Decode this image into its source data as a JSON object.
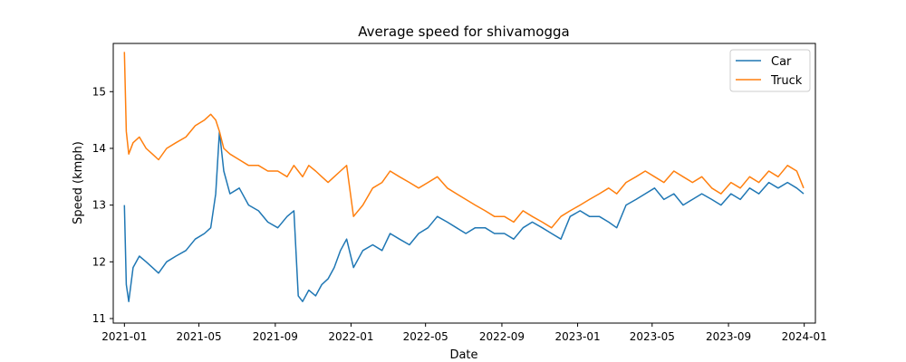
{
  "chart_data": {
    "type": "line",
    "title": "Average speed for shivamogga",
    "xlabel": "Date",
    "ylabel": "Speed (kmph)",
    "xlim": [
      "2020-12-14",
      "2024-01-19"
    ],
    "ylim": [
      10.92,
      15.85
    ],
    "x_ticks": [
      "2021-01",
      "2021-05",
      "2021-09",
      "2022-01",
      "2022-05",
      "2022-09",
      "2023-01",
      "2023-05",
      "2023-09",
      "2024-01"
    ],
    "y_ticks": [
      11,
      12,
      13,
      14,
      15
    ],
    "legend_position": "top-right",
    "grid": false,
    "series": [
      {
        "name": "Car",
        "color": "#1f77b4",
        "x": [
          "2021-01-01",
          "2021-01-04",
          "2021-01-08",
          "2021-01-15",
          "2021-01-25",
          "2021-02-05",
          "2021-02-15",
          "2021-02-25",
          "2021-03-10",
          "2021-03-25",
          "2021-04-10",
          "2021-04-25",
          "2021-05-10",
          "2021-05-20",
          "2021-05-28",
          "2021-06-03",
          "2021-06-10",
          "2021-06-20",
          "2021-07-05",
          "2021-07-20",
          "2021-08-05",
          "2021-08-20",
          "2021-09-05",
          "2021-09-20",
          "2021-10-01",
          "2021-10-08",
          "2021-10-15",
          "2021-10-25",
          "2021-11-05",
          "2021-11-15",
          "2021-11-25",
          "2021-12-05",
          "2021-12-15",
          "2021-12-25",
          "2022-01-05",
          "2022-01-20",
          "2022-02-05",
          "2022-02-20",
          "2022-03-05",
          "2022-03-20",
          "2022-04-05",
          "2022-04-20",
          "2022-05-05",
          "2022-05-20",
          "2022-06-05",
          "2022-06-20",
          "2022-07-05",
          "2022-07-20",
          "2022-08-05",
          "2022-08-20",
          "2022-09-05",
          "2022-09-20",
          "2022-10-05",
          "2022-10-20",
          "2022-11-05",
          "2022-11-20",
          "2022-12-05",
          "2022-12-20",
          "2023-01-05",
          "2023-01-20",
          "2023-02-05",
          "2023-02-20",
          "2023-03-05",
          "2023-03-20",
          "2023-04-05",
          "2023-04-20",
          "2023-05-05",
          "2023-05-20",
          "2023-06-05",
          "2023-06-20",
          "2023-07-05",
          "2023-07-20",
          "2023-08-05",
          "2023-08-20",
          "2023-09-05",
          "2023-09-20",
          "2023-10-05",
          "2023-10-20",
          "2023-11-05",
          "2023-11-20",
          "2023-12-05",
          "2023-12-20",
          "2023-12-31"
        ],
        "y": [
          13.0,
          11.6,
          11.3,
          11.9,
          12.1,
          12.0,
          11.9,
          11.8,
          12.0,
          12.1,
          12.2,
          12.4,
          12.5,
          12.6,
          13.2,
          14.3,
          13.6,
          13.2,
          13.3,
          13.0,
          12.9,
          12.7,
          12.6,
          12.8,
          12.9,
          11.4,
          11.3,
          11.5,
          11.4,
          11.6,
          11.7,
          11.9,
          12.2,
          12.4,
          11.9,
          12.2,
          12.3,
          12.2,
          12.5,
          12.4,
          12.3,
          12.5,
          12.6,
          12.8,
          12.7,
          12.6,
          12.5,
          12.6,
          12.6,
          12.5,
          12.5,
          12.4,
          12.6,
          12.7,
          12.6,
          12.5,
          12.4,
          12.8,
          12.9,
          12.8,
          12.8,
          12.7,
          12.6,
          13.0,
          13.1,
          13.2,
          13.3,
          13.1,
          13.2,
          13.0,
          13.1,
          13.2,
          13.1,
          13.0,
          13.2,
          13.1,
          13.3,
          13.2,
          13.4,
          13.3,
          13.4,
          13.3,
          13.2
        ]
      },
      {
        "name": "Truck",
        "color": "#ff7f0e",
        "x": [
          "2021-01-01",
          "2021-01-04",
          "2021-01-08",
          "2021-01-15",
          "2021-01-25",
          "2021-02-05",
          "2021-02-15",
          "2021-02-25",
          "2021-03-10",
          "2021-03-25",
          "2021-04-10",
          "2021-04-25",
          "2021-05-10",
          "2021-05-20",
          "2021-05-28",
          "2021-06-03",
          "2021-06-10",
          "2021-06-20",
          "2021-07-05",
          "2021-07-20",
          "2021-08-05",
          "2021-08-20",
          "2021-09-05",
          "2021-09-20",
          "2021-10-01",
          "2021-10-08",
          "2021-10-15",
          "2021-10-25",
          "2021-11-05",
          "2021-11-15",
          "2021-11-25",
          "2021-12-05",
          "2021-12-15",
          "2021-12-25",
          "2022-01-05",
          "2022-01-20",
          "2022-02-05",
          "2022-02-20",
          "2022-03-05",
          "2022-03-20",
          "2022-04-05",
          "2022-04-20",
          "2022-05-05",
          "2022-05-20",
          "2022-06-05",
          "2022-06-20",
          "2022-07-05",
          "2022-07-20",
          "2022-08-05",
          "2022-08-20",
          "2022-09-05",
          "2022-09-20",
          "2022-10-05",
          "2022-10-20",
          "2022-11-05",
          "2022-11-20",
          "2022-12-05",
          "2022-12-20",
          "2023-01-05",
          "2023-01-20",
          "2023-02-05",
          "2023-02-20",
          "2023-03-05",
          "2023-03-20",
          "2023-04-05",
          "2023-04-20",
          "2023-05-05",
          "2023-05-20",
          "2023-06-05",
          "2023-06-20",
          "2023-07-05",
          "2023-07-20",
          "2023-08-05",
          "2023-08-20",
          "2023-09-05",
          "2023-09-20",
          "2023-10-05",
          "2023-10-20",
          "2023-11-05",
          "2023-11-20",
          "2023-12-05",
          "2023-12-20",
          "2023-12-31"
        ],
        "y": [
          15.7,
          14.3,
          13.9,
          14.1,
          14.2,
          14.0,
          13.9,
          13.8,
          14.0,
          14.1,
          14.2,
          14.4,
          14.5,
          14.6,
          14.5,
          14.3,
          14.0,
          13.9,
          13.8,
          13.7,
          13.7,
          13.6,
          13.6,
          13.5,
          13.7,
          13.6,
          13.5,
          13.7,
          13.6,
          13.5,
          13.4,
          13.5,
          13.6,
          13.7,
          12.8,
          13.0,
          13.3,
          13.4,
          13.6,
          13.5,
          13.4,
          13.3,
          13.4,
          13.5,
          13.3,
          13.2,
          13.1,
          13.0,
          12.9,
          12.8,
          12.8,
          12.7,
          12.9,
          12.8,
          12.7,
          12.6,
          12.8,
          12.9,
          13.0,
          13.1,
          13.2,
          13.3,
          13.2,
          13.4,
          13.5,
          13.6,
          13.5,
          13.4,
          13.6,
          13.5,
          13.4,
          13.5,
          13.3,
          13.2,
          13.4,
          13.3,
          13.5,
          13.4,
          13.6,
          13.5,
          13.7,
          13.6,
          13.3
        ]
      }
    ]
  }
}
